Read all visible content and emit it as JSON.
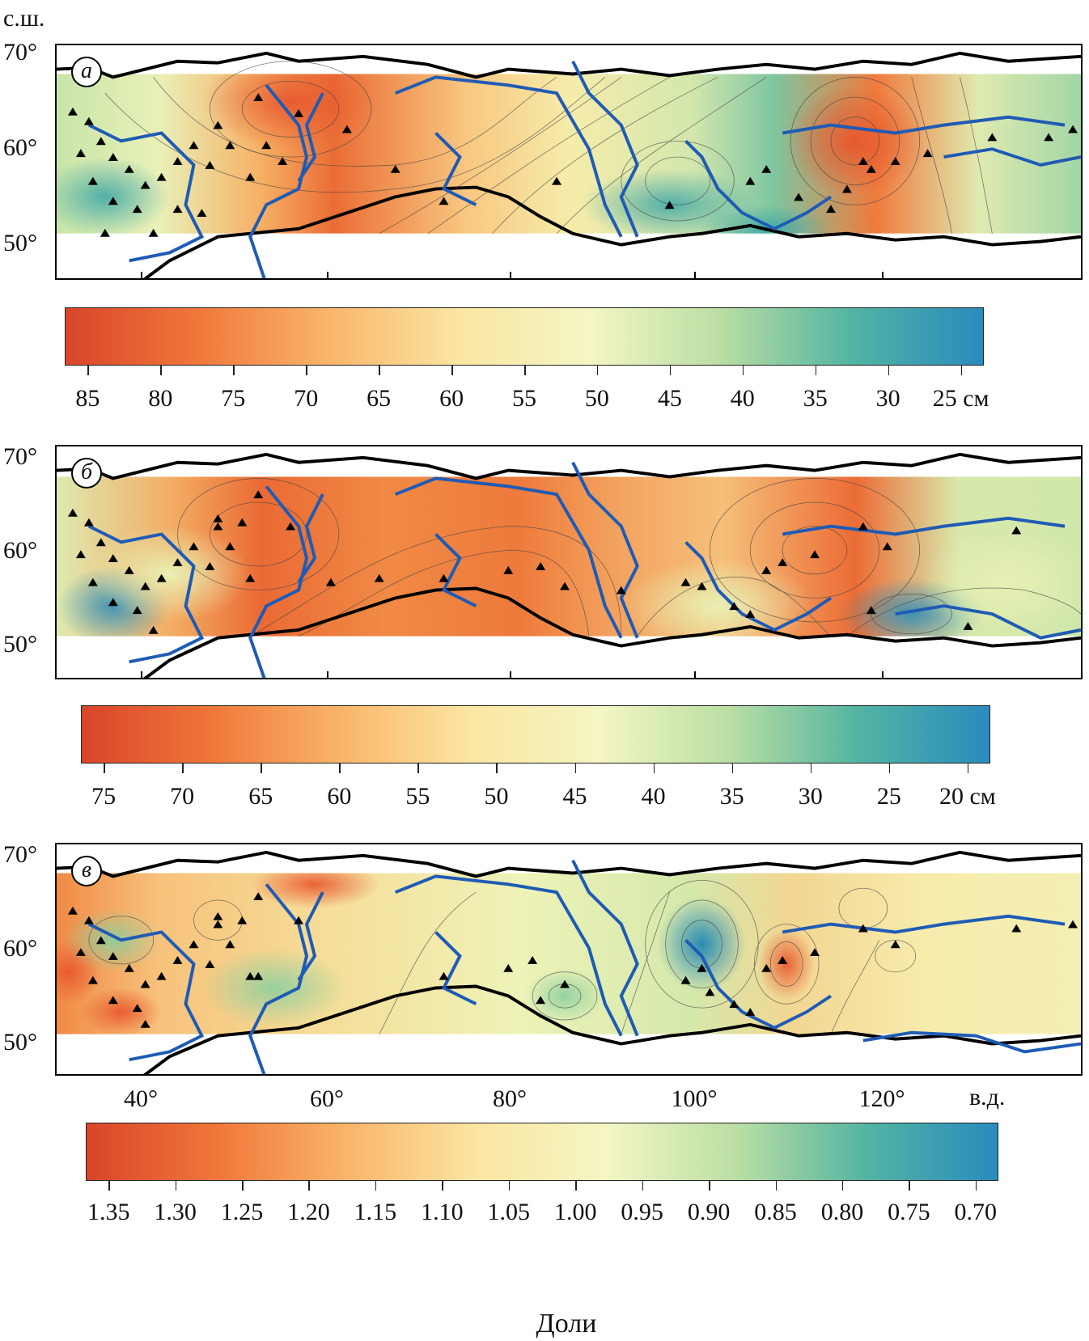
{
  "axis_labels": {
    "lat_unit": "с.ш.",
    "lon_unit": "в.д.",
    "lat_ticks": [
      "70°",
      "60°",
      "50°"
    ],
    "lon_ticks": [
      "40°",
      "60°",
      "80°",
      "100°",
      "120°"
    ]
  },
  "panels": [
    {
      "id": "a",
      "label": "а",
      "colorbar": {
        "labels": [
          "85",
          "80",
          "75",
          "70",
          "65",
          "60",
          "55",
          "50",
          "45",
          "40",
          "35",
          "30",
          "25 см"
        ],
        "colors": [
          "#d9452a",
          "#f0773a",
          "#f9b56a",
          "#fbe6a2",
          "#f4f6c4",
          "#b9dea3",
          "#52b4a2",
          "#2a8bbf"
        ]
      }
    },
    {
      "id": "b",
      "label": "б",
      "colorbar": {
        "labels": [
          "75",
          "70",
          "65",
          "60",
          "55",
          "50",
          "45",
          "40",
          "35",
          "30",
          "25",
          "20 см"
        ],
        "colors": [
          "#d9452a",
          "#f0773a",
          "#f9b56a",
          "#fbe6a2",
          "#f4f6c4",
          "#b9dea3",
          "#52b4a2",
          "#2a8bbf"
        ]
      }
    },
    {
      "id": "v",
      "label": "в",
      "colorbar": {
        "labels": [
          "1.35",
          "1.30",
          "1.25",
          "1.20",
          "1.15",
          "1.10",
          "1.05",
          "1.00",
          "0.95",
          "0.90",
          "0.85",
          "0.80",
          "0.75",
          "0.70"
        ],
        "title": "Доли",
        "colors": [
          "#d9452a",
          "#f0773a",
          "#f9b56a",
          "#fbe6a2",
          "#f4f6c4",
          "#b9dea3",
          "#52b4a2",
          "#2a8bbf"
        ]
      }
    }
  ],
  "map_colors": {
    "river": "#1f5bb5",
    "coast": "#000000",
    "station": "#000000"
  }
}
